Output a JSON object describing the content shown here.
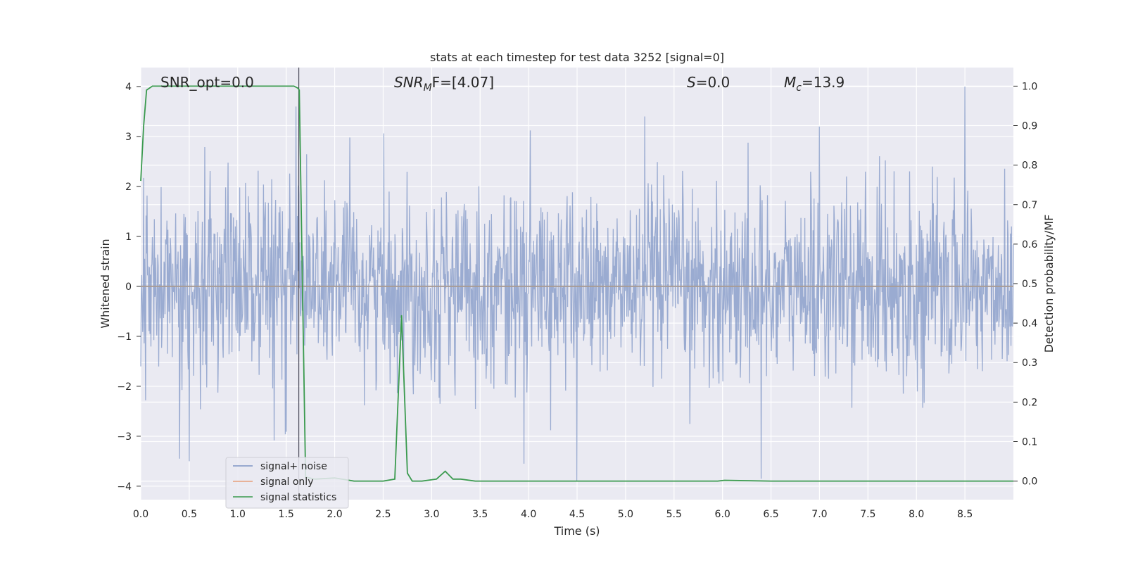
{
  "chart_data": {
    "type": "line",
    "title": "stats at each timestep for test data 3252 [signal=0]",
    "xlabel": "Time (s)",
    "ylabel_left": "Whitened strain",
    "ylabel_right": "Detection probability/MF",
    "xlim": [
      0,
      9.0
    ],
    "ylim_left": [
      -4.27,
      4.38
    ],
    "ylim_right": [
      -0.047,
      1.047
    ],
    "x_ticks": [
      0.0,
      0.5,
      1.0,
      1.5,
      2.0,
      2.5,
      3.0,
      3.5,
      4.0,
      4.5,
      5.0,
      5.5,
      6.0,
      6.5,
      7.0,
      7.5,
      8.0,
      8.5
    ],
    "x_tick_labels": [
      "0.0",
      "0.5",
      "1.0",
      "1.5",
      "2.0",
      "2.5",
      "3.0",
      "3.5",
      "4.0",
      "4.5",
      "5.0",
      "5.5",
      "6.0",
      "6.5",
      "7.0",
      "7.5",
      "8.0",
      "8.5"
    ],
    "y_left_ticks": [
      4,
      3,
      2,
      1,
      0,
      -1,
      -2,
      -3,
      -4
    ],
    "y_left_tick_labels": [
      "4",
      "3",
      "2",
      "1",
      "0",
      "−1",
      "−2",
      "−3",
      "−4"
    ],
    "y_right_ticks": [
      1.0,
      0.9,
      0.8,
      0.7,
      0.6,
      0.5,
      0.4,
      0.3,
      0.2,
      0.1,
      0.0
    ],
    "y_right_tick_labels": [
      "1.0",
      "0.9",
      "0.8",
      "0.7",
      "0.6",
      "0.5",
      "0.4",
      "0.3",
      "0.2",
      "0.1",
      "0.0"
    ],
    "grid": true,
    "vertical_marker_x": 1.63,
    "annotations": {
      "snr_opt": "SNR_opt=0.0",
      "snr_mf_sym": "SNR",
      "snr_mf_sub": "M",
      "snr_mf_val": "F=[4.07]",
      "s_sym": "S",
      "s_val": "=0.0",
      "mc_sym": "M",
      "mc_sub": "c",
      "mc_val": "=13.9"
    },
    "legend": {
      "placement": "lower-left",
      "entries": [
        {
          "label": "signal+ noise",
          "color": "#7c93c3"
        },
        {
          "label": "signal only",
          "color": "#e8a07a"
        },
        {
          "label": "signal statistics",
          "color": "#3a9a4e"
        }
      ]
    },
    "series": [
      {
        "name": "signal+ noise",
        "axis": "left",
        "color": "#7c93c3",
        "kind": "noise",
        "typical_amplitude": [
          -1.6,
          1.7
        ],
        "peak_high": [
          {
            "x": 1.6,
            "y": 3.6
          },
          {
            "x": 8.5,
            "y": 4.0
          },
          {
            "x": 7.0,
            "y": 3.2
          },
          {
            "x": 5.2,
            "y": 3.4
          }
        ],
        "peak_low": [
          {
            "x": 6.4,
            "y": -3.85
          },
          {
            "x": 4.5,
            "y": -3.9
          },
          {
            "x": 0.4,
            "y": -3.45
          },
          {
            "x": 0.5,
            "y": -3.5
          },
          {
            "x": 3.95,
            "y": -3.55
          }
        ]
      },
      {
        "name": "signal only",
        "axis": "left",
        "color": "#e8a07a",
        "x": [
          0.0,
          9.0
        ],
        "y": [
          0.0,
          0.0
        ]
      },
      {
        "name": "signal statistics",
        "axis": "right",
        "color": "#3a9a4e",
        "x": [
          0.0,
          0.03,
          0.06,
          0.12,
          0.3,
          0.6,
          1.0,
          1.4,
          1.58,
          1.62,
          1.635,
          1.7,
          1.8,
          2.0,
          2.2,
          2.5,
          2.62,
          2.69,
          2.75,
          2.8,
          2.9,
          3.05,
          3.14,
          3.22,
          3.3,
          3.45,
          4.0,
          5.0,
          5.95,
          6.02,
          6.5,
          7.5,
          8.5,
          9.0
        ],
        "y": [
          0.76,
          0.9,
          0.99,
          1.0,
          1.0,
          1.0,
          1.0,
          1.0,
          1.0,
          0.995,
          0.99,
          0.01,
          0.005,
          0.008,
          0.0,
          0.0,
          0.005,
          0.42,
          0.02,
          0.0,
          0.0,
          0.005,
          0.025,
          0.005,
          0.005,
          0.0,
          0.0,
          0.0,
          0.0,
          0.002,
          0.0,
          0.0,
          0.0,
          0.0
        ]
      }
    ]
  }
}
